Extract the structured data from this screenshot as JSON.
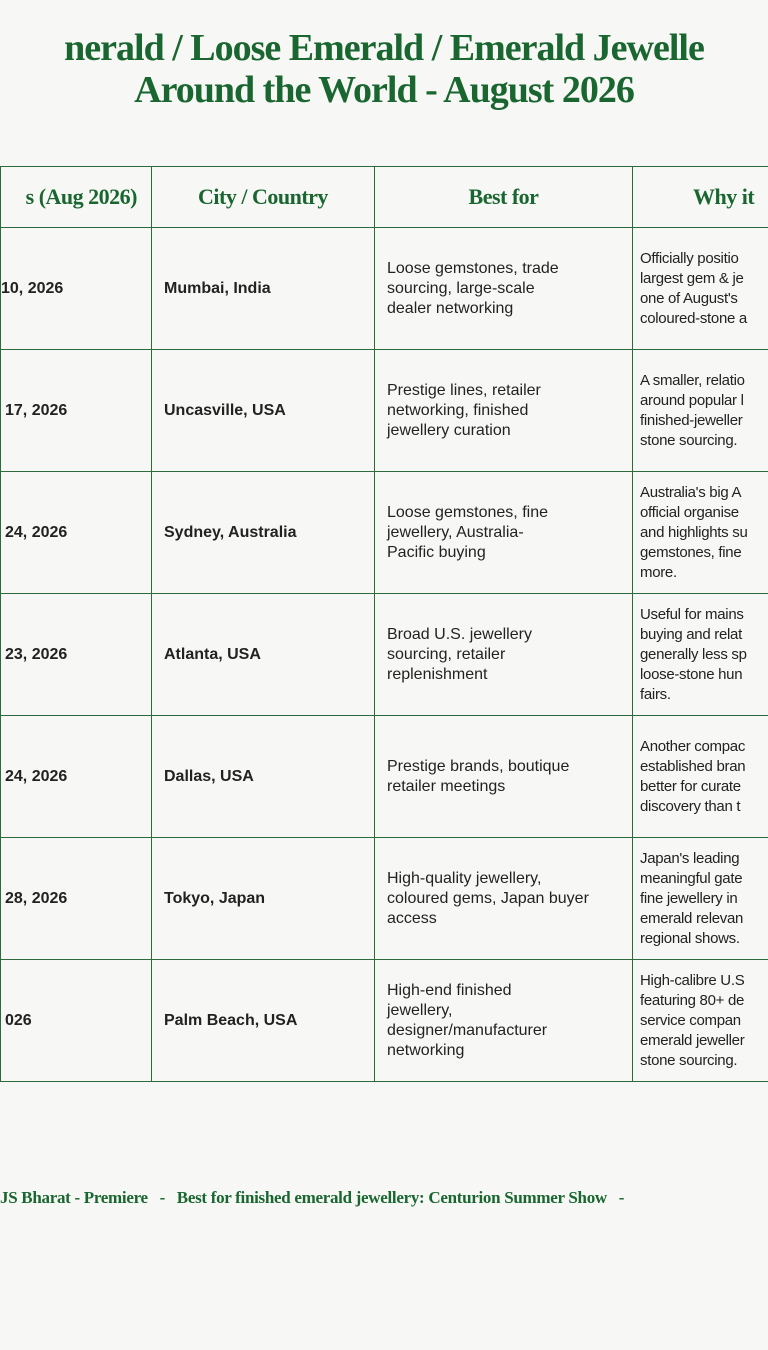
{
  "title": {
    "line1": "nerald / Loose Emerald / Emerald Jewelle",
    "line2": "Around the World - August 2026"
  },
  "table": {
    "headers": [
      "s (Aug 2026)",
      "City / Country",
      "Best for",
      "Why it"
    ],
    "rows": [
      {
        "dates": "10, 2026",
        "city": "Mumbai, India",
        "best_for": "Loose gemstones, trade\nsourcing, large-scale\ndealer networking",
        "why": "Officially positio\nlargest gem & je\none of August's\ncoloured-stone a"
      },
      {
        "dates": "17, 2026",
        "city": "Uncasville, USA",
        "best_for": "Prestige lines, retailer\nnetworking, finished\njewellery curation",
        "why": "A smaller, relatio\naround popular l\nfinished-jeweller\nstone sourcing."
      },
      {
        "dates": "24, 2026",
        "city": "Sydney, Australia",
        "best_for": "Loose gemstones, fine\njewellery, Australia-\nPacific buying",
        "why": "Australia's big A\nofficial organise\nand highlights su\ngemstones, fine\nmore."
      },
      {
        "dates": "23, 2026",
        "city": "Atlanta, USA",
        "best_for": "Broad U.S. jewellery\nsourcing, retailer\nreplenishment",
        "why": "Useful for mains\nbuying and relat\ngenerally less sp\nloose-stone hun\nfairs."
      },
      {
        "dates": "24, 2026",
        "city": "Dallas, USA",
        "best_for": "Prestige brands, boutique\nretailer meetings",
        "why": "Another compac\nestablished bran\nbetter for curate\ndiscovery than t"
      },
      {
        "dates": "28, 2026",
        "city": "Tokyo, Japan",
        "best_for": "High-quality jewellery,\ncoloured gems, Japan buyer\naccess",
        "why": "Japan's leading\nmeaningful gate\nfine jewellery in\nemerald relevan\nregional shows."
      },
      {
        "dates": "026",
        "city": "Palm Beach, USA",
        "best_for": "High-end finished\njewellery,\ndesigner/manufacturer\nnetworking",
        "why": "High-calibre U.S\nfeaturing 80+ de\nservice compan\nemerald jeweller\nstone sourcing."
      }
    ]
  },
  "footer": {
    "text": "JS Bharat - Premiere   -   Best for finished emerald jewellery: Centurion Summer Show   -"
  },
  "colors": {
    "accent": "#1a6630",
    "border": "#2a6a3c",
    "background": "#f7f7f5",
    "text": "#222222"
  }
}
